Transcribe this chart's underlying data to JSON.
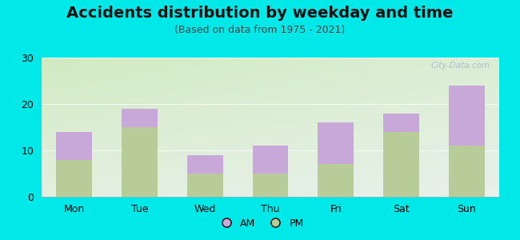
{
  "title": "Accidents distribution by weekday and time",
  "subtitle": "(Based on data from 1975 - 2021)",
  "categories": [
    "Mon",
    "Tue",
    "Wed",
    "Thu",
    "Fri",
    "Sat",
    "Sun"
  ],
  "pm_values": [
    8,
    15,
    5,
    5,
    7,
    14,
    11
  ],
  "am_values": [
    6,
    4,
    4,
    6,
    9,
    4,
    13
  ],
  "am_color": "#c8a8d8",
  "pm_color": "#b8cc9a",
  "background_color": "#00e8e8",
  "ylim": [
    0,
    30
  ],
  "yticks": [
    0,
    10,
    20,
    30
  ],
  "bar_width": 0.55,
  "title_fontsize": 14,
  "subtitle_fontsize": 9,
  "tick_fontsize": 9,
  "legend_fontsize": 9,
  "watermark_text": "⚙ City-Data.com",
  "watermark_color": "#aabbcc"
}
